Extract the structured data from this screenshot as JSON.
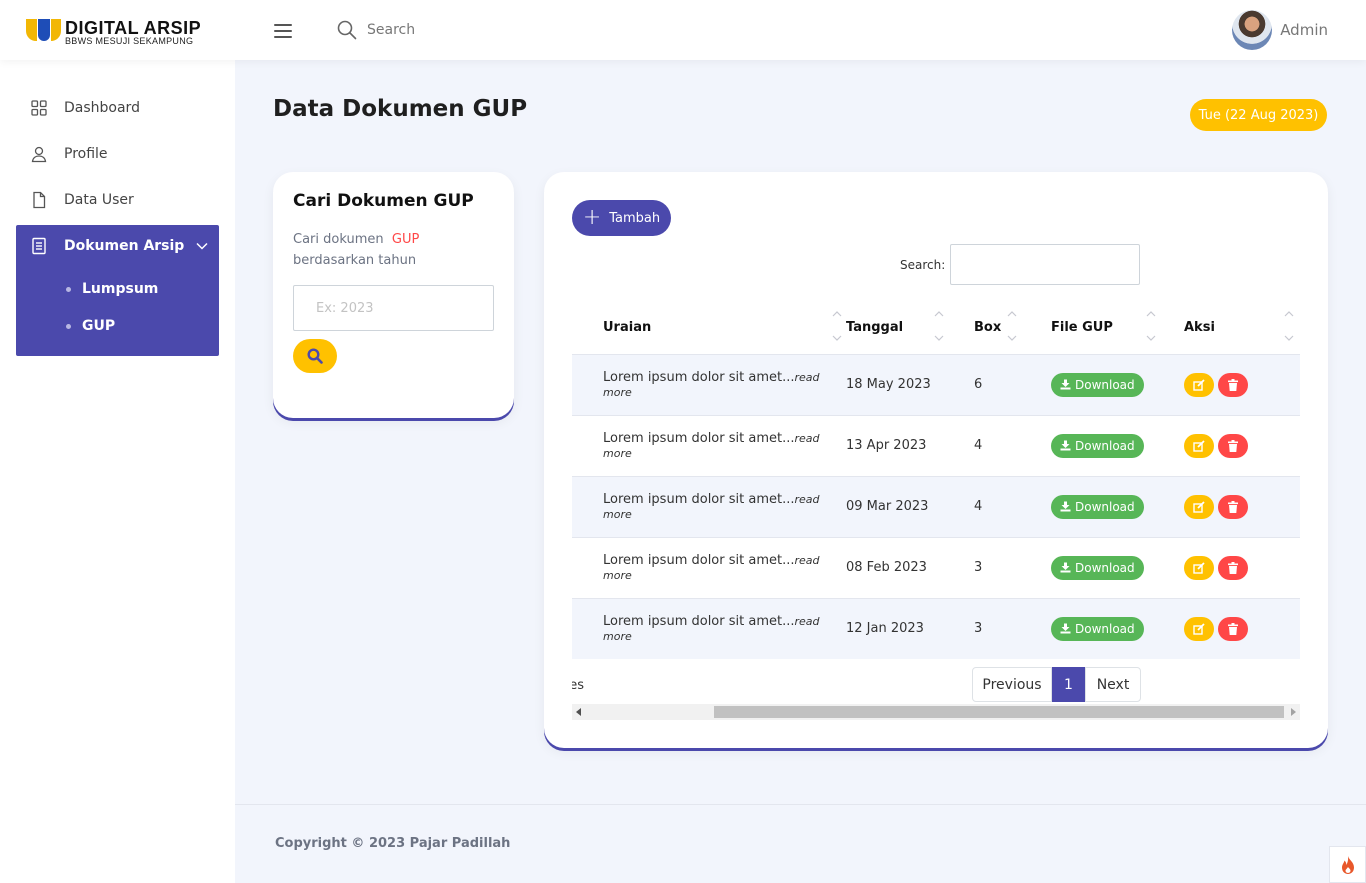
{
  "brand": {
    "title": "DIGITAL ARSIP",
    "subtitle": "BBWS MESUJI SEKAMPUNG"
  },
  "topbar": {
    "search_placeholder": "Search",
    "user_name": "Admin"
  },
  "sidebar": {
    "items": [
      {
        "label": "Dashboard",
        "icon": "grid-icon"
      },
      {
        "label": "Profile",
        "icon": "user-icon"
      },
      {
        "label": "Data User",
        "icon": "file-icon"
      }
    ],
    "active": {
      "label": "Dokumen Arsip",
      "icon": "document-icon",
      "children": [
        "Lumpsum",
        "GUP"
      ]
    }
  },
  "page": {
    "title": "Data Dokumen GUP",
    "date": "Tue (22 Aug 2023)"
  },
  "search_card": {
    "title": "Cari Dokumen GUP",
    "desc_prefix": "Cari dokumen",
    "desc_highlight": "GUP",
    "desc_suffix": "berdasarkan tahun",
    "input_placeholder": "Ex: 2023"
  },
  "table_card": {
    "add_label": "Tambah",
    "search_label": "Search:",
    "columns": [
      "Uraian",
      "Tanggal",
      "Box",
      "File GUP",
      "Aksi"
    ],
    "rows": [
      {
        "uraian": "Lorem ipsum dolor sit amet...",
        "more": "read more",
        "tanggal": "18 May 2023",
        "box": "6",
        "file": "Download"
      },
      {
        "uraian": "Lorem ipsum dolor sit amet...",
        "more": "read more",
        "tanggal": "13 Apr 2023",
        "box": "4",
        "file": "Download"
      },
      {
        "uraian": "Lorem ipsum dolor sit amet...",
        "more": "read more",
        "tanggal": "09 Mar 2023",
        "box": "4",
        "file": "Download"
      },
      {
        "uraian": "Lorem ipsum dolor sit amet...",
        "more": "read more",
        "tanggal": "08 Feb 2023",
        "box": "3",
        "file": "Download"
      },
      {
        "uraian": "Lorem ipsum dolor sit amet...",
        "more": "read more",
        "tanggal": "12 Jan 2023",
        "box": "3",
        "file": "Download"
      }
    ],
    "info_fragment": "es",
    "pager": {
      "prev": "Previous",
      "current": "1",
      "next": "Next"
    }
  },
  "footer": {
    "copyright": "Copyright © 2023 Pajar Padillah"
  },
  "colors": {
    "primary": "#4b49ac",
    "warning": "#ffc100",
    "success": "#57b657",
    "danger": "#ff4747",
    "background": "#f2f5fc"
  }
}
